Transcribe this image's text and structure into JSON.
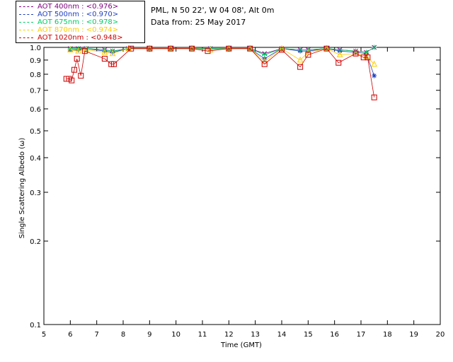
{
  "legend": [
    {
      "label": "AOT  400nm : <0.976>",
      "color": "#7f007f"
    },
    {
      "label": "AOT  500nm : <0.970>",
      "color": "#1f3fbf"
    },
    {
      "label": "AOT  675nm : <0.978>",
      "color": "#00cc66"
    },
    {
      "label": "AOT  870nm : <0.974>",
      "color": "#ffcc00"
    },
    {
      "label": "AOT 1020nm : <0.948>",
      "color": "#cc0000"
    }
  ],
  "info": {
    "site": "PML, N 50 22', W 04 08', Alt 0m",
    "date": "Data from: 25 May 2017"
  },
  "chart_data": {
    "type": "scatter",
    "title": "",
    "xlabel": "Time (GMT)",
    "ylabel": "Single Scattering Albedo (ω)",
    "xlim": [
      5,
      20
    ],
    "ylim": [
      0.1,
      1.0
    ],
    "yscale": "log",
    "xticks": [
      "5",
      "6",
      "7",
      "8",
      "9",
      "10",
      "11",
      "12",
      "13",
      "14",
      "15",
      "16",
      "17",
      "18",
      "19",
      "20"
    ],
    "yticks": [
      "0.1",
      "0.2",
      "0.3",
      "0.4",
      "0.5",
      "0.6",
      "0.7",
      "0.8",
      "0.9",
      "1.0"
    ],
    "series": [
      {
        "name": "AOT 400nm",
        "color": "#7f007f",
        "marker": "x",
        "x": [
          6.0,
          6.3,
          6.6,
          7.3,
          7.6,
          8.2,
          9.0,
          9.8,
          10.6,
          11.3,
          12.0,
          12.8,
          13.35,
          14.0,
          14.7,
          15.0,
          15.7,
          16.2,
          16.8,
          17.2,
          17.5
        ],
        "y": [
          0.99,
          0.99,
          0.99,
          0.98,
          0.97,
          0.99,
          0.99,
          0.99,
          0.99,
          0.99,
          0.99,
          0.99,
          0.95,
          0.99,
          0.98,
          0.98,
          0.99,
          0.98,
          0.97,
          0.96,
          1.0
        ]
      },
      {
        "name": "AOT 500nm",
        "color": "#1f3fbf",
        "marker": "*",
        "x": [
          6.0,
          6.3,
          6.6,
          7.3,
          7.6,
          8.2,
          9.0,
          9.8,
          10.6,
          11.3,
          12.0,
          12.8,
          13.35,
          14.0,
          14.7,
          15.0,
          15.7,
          16.2,
          16.8,
          17.2,
          17.5
        ],
        "y": [
          0.98,
          0.98,
          0.99,
          0.97,
          0.96,
          0.99,
          0.99,
          0.99,
          0.99,
          0.99,
          0.99,
          0.99,
          0.91,
          0.99,
          0.97,
          0.97,
          0.99,
          0.97,
          0.96,
          0.95,
          0.79
        ]
      },
      {
        "name": "AOT 675nm",
        "color": "#00cc66",
        "marker": "+",
        "x": [
          6.0,
          6.3,
          6.6,
          7.3,
          7.6,
          8.2,
          9.0,
          9.8,
          10.6,
          11.3,
          12.0,
          12.8,
          13.35,
          14.0,
          14.7,
          15.0,
          15.7,
          16.2,
          16.8,
          17.2,
          17.5
        ],
        "y": [
          0.99,
          0.99,
          0.99,
          0.98,
          0.97,
          0.99,
          0.99,
          0.99,
          0.99,
          0.99,
          0.99,
          0.99,
          0.94,
          0.99,
          0.98,
          0.98,
          0.99,
          0.98,
          0.97,
          0.96,
          1.0
        ]
      },
      {
        "name": "AOT 870nm",
        "color": "#ffcc00",
        "marker": "triangle",
        "x": [
          6.0,
          6.3,
          6.6,
          7.3,
          7.6,
          8.2,
          9.0,
          9.8,
          10.6,
          11.3,
          12.0,
          12.8,
          13.35,
          14.0,
          14.7,
          15.0,
          15.7,
          16.2,
          16.8,
          17.2,
          17.5
        ],
        "y": [
          0.98,
          0.97,
          0.98,
          0.96,
          0.95,
          0.99,
          0.99,
          0.99,
          0.99,
          0.98,
          0.99,
          0.99,
          0.89,
          0.99,
          0.9,
          0.96,
          0.99,
          0.94,
          0.95,
          0.93,
          0.87
        ]
      },
      {
        "name": "AOT 1020nm",
        "color": "#cc0000",
        "marker": "square",
        "x": [
          5.85,
          5.95,
          6.05,
          6.15,
          6.25,
          6.4,
          6.55,
          7.3,
          7.55,
          7.65,
          8.3,
          9.0,
          9.8,
          10.6,
          11.2,
          12.0,
          12.8,
          13.35,
          14.0,
          14.7,
          15.0,
          15.7,
          16.15,
          16.8,
          17.1,
          17.25,
          17.5
        ],
        "y": [
          0.77,
          0.77,
          0.76,
          0.83,
          0.91,
          0.79,
          0.97,
          0.91,
          0.87,
          0.87,
          0.99,
          0.99,
          0.99,
          0.99,
          0.97,
          0.99,
          0.99,
          0.87,
          0.98,
          0.85,
          0.94,
          0.99,
          0.88,
          0.95,
          0.92,
          0.92,
          0.66
        ]
      }
    ]
  }
}
